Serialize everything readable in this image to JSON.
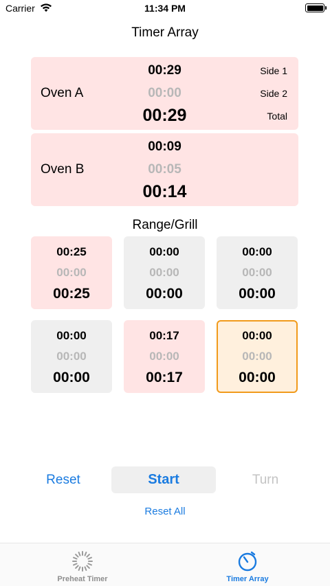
{
  "status_bar": {
    "carrier": "Carrier",
    "time": "11:34 PM"
  },
  "nav": {
    "title": "Timer Array"
  },
  "ovens": [
    {
      "name": "Oven A",
      "side1": "00:29",
      "side2": "00:00",
      "total": "00:29",
      "labels": {
        "side1": "Side 1",
        "side2": "Side 2",
        "total": "Total"
      }
    },
    {
      "name": "Oven B",
      "side1": "00:09",
      "side2": "00:05",
      "total": "00:14"
    }
  ],
  "range_grill": {
    "title": "Range/Grill",
    "cells": [
      {
        "a": "00:25",
        "b": "00:00",
        "c": "00:25",
        "state": "pink"
      },
      {
        "a": "00:00",
        "b": "00:00",
        "c": "00:00",
        "state": "gray"
      },
      {
        "a": "00:00",
        "b": "00:00",
        "c": "00:00",
        "state": "gray"
      },
      {
        "a": "00:00",
        "b": "00:00",
        "c": "00:00",
        "state": "gray"
      },
      {
        "a": "00:17",
        "b": "00:00",
        "c": "00:17",
        "state": "pink"
      },
      {
        "a": "00:00",
        "b": "00:00",
        "c": "00:00",
        "state": "selected"
      }
    ]
  },
  "controls": {
    "reset": "Reset",
    "start": "Start",
    "turn": "Turn",
    "reset_all": "Reset All"
  },
  "tab_bar": {
    "tabs": [
      {
        "label": "Preheat Timer",
        "icon": "spinner-icon",
        "selected": false
      },
      {
        "label": "Timer Array",
        "icon": "stopwatch-icon",
        "selected": true
      }
    ]
  },
  "colors": {
    "accent": "#1a7be0",
    "pink_card": "#ffe4e4",
    "gray_card": "#efefef",
    "selected_border": "#f19a1a",
    "selected_fill": "#fff0dd",
    "disabled_text": "#b7b7b7"
  }
}
